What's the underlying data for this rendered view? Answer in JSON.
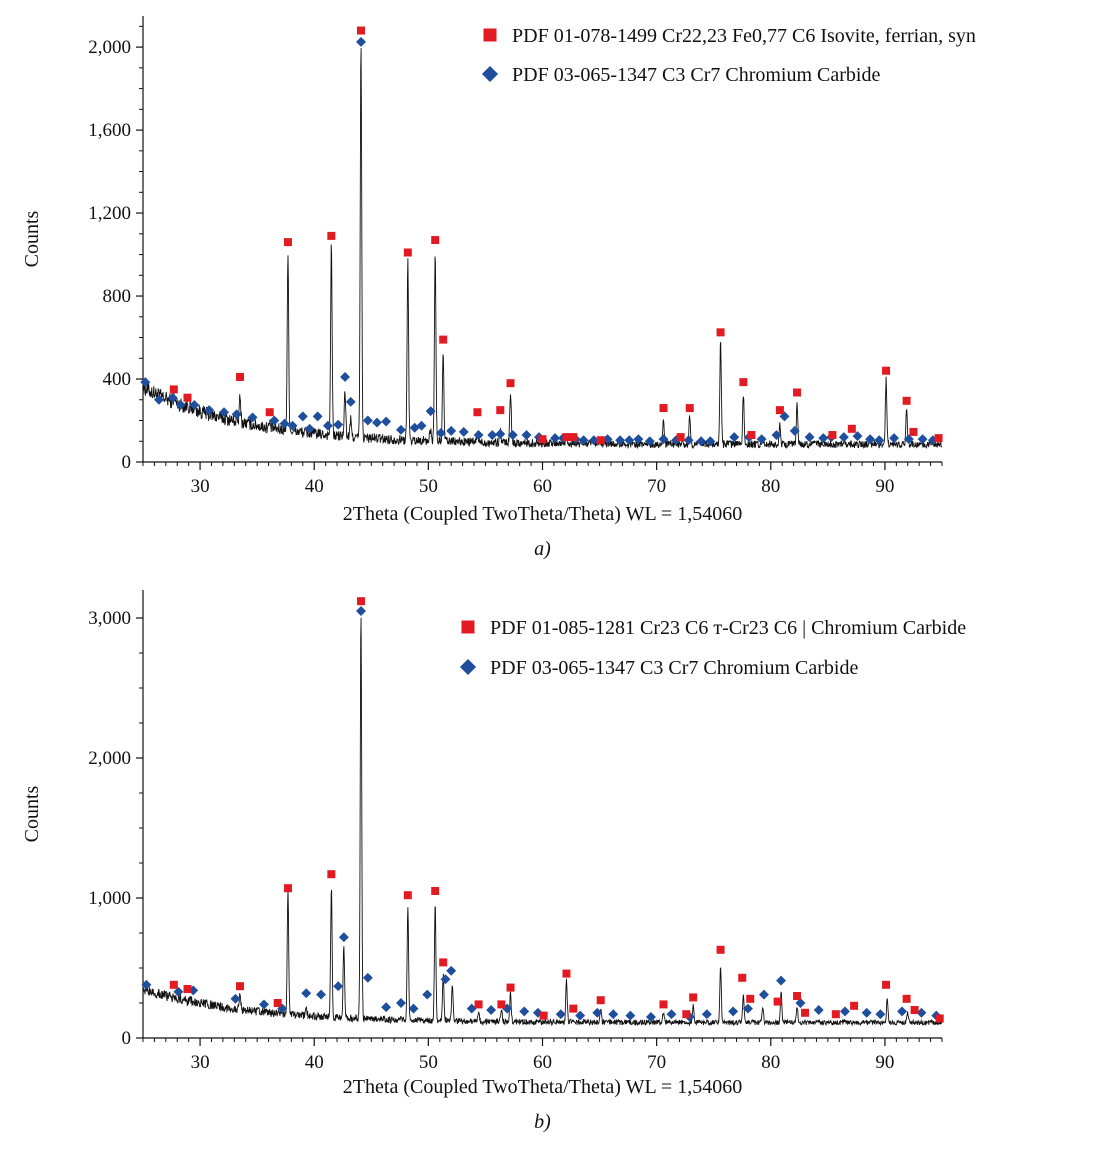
{
  "chart_data": [
    {
      "type": "line",
      "panel_label": "a)",
      "xlabel": "2Theta (Coupled TwoTheta/Theta) WL = 1,54060",
      "ylabel": "Counts",
      "xlim": [
        25,
        95
      ],
      "ylim": [
        0,
        2150
      ],
      "xticks": [
        30,
        40,
        50,
        60,
        70,
        80,
        90
      ],
      "yticks": [
        0,
        400,
        800,
        1200,
        1600,
        2000
      ],
      "ytick_labels": [
        "0",
        "400",
        "800",
        "1,200",
        "1,600",
        "2,000"
      ],
      "grid": false,
      "legend_position": "top-right",
      "baseline": {
        "start": 360,
        "end": 85,
        "decay": 9
      },
      "peaks": [
        [
          27.7,
          20
        ],
        [
          28.9,
          25
        ],
        [
          29.5,
          20
        ],
        [
          33.5,
          120
        ],
        [
          36.1,
          20
        ],
        [
          37.7,
          850
        ],
        [
          41.5,
          920
        ],
        [
          42.7,
          220
        ],
        [
          43.2,
          80
        ],
        [
          44.1,
          1900
        ],
        [
          48.2,
          860
        ],
        [
          50.2,
          60
        ],
        [
          50.6,
          920
        ],
        [
          51.3,
          410
        ],
        [
          54.3,
          40
        ],
        [
          56.3,
          60
        ],
        [
          57.2,
          250
        ],
        [
          62.1,
          30
        ],
        [
          70.6,
          120
        ],
        [
          72.9,
          130
        ],
        [
          75.6,
          500
        ],
        [
          77.6,
          240
        ],
        [
          80.8,
          100
        ],
        [
          82.3,
          200
        ],
        [
          90.1,
          320
        ],
        [
          91.9,
          160
        ]
      ],
      "series": [
        {
          "name": "PDF 01-078-1499 Cr22,23 Fe0,77 C6 Isovite, ferrian, syn",
          "marker": "square",
          "color": "#e21b22",
          "x": [
            27.7,
            28.9,
            33.5,
            36.1,
            37.7,
            41.5,
            44.1,
            48.2,
            50.6,
            51.3,
            54.3,
            56.3,
            57.2,
            60.0,
            62.1,
            62.7,
            65.1,
            70.6,
            72.1,
            72.9,
            75.6,
            77.6,
            78.3,
            80.8,
            82.3,
            85.4,
            87.1,
            90.1,
            91.9,
            92.5,
            94.7
          ],
          "y": [
            350,
            310,
            410,
            240,
            1060,
            1090,
            2080,
            1010,
            1070,
            590,
            240,
            250,
            380,
            110,
            120,
            120,
            105,
            260,
            120,
            260,
            625,
            385,
            130,
            250,
            335,
            130,
            160,
            440,
            295,
            145,
            115
          ]
        },
        {
          "name": "PDF 03-065-1347 C3 Cr7 Chromium Carbide",
          "marker": "diamond",
          "color": "#1f4e9c",
          "x": [
            25.2,
            26.4,
            27.6,
            28.3,
            29.5,
            30.8,
            32.1,
            33.2,
            34.6,
            36.5,
            37.4,
            38.1,
            39.0,
            39.6,
            40.3,
            41.2,
            42.1,
            42.7,
            43.2,
            44.1,
            44.7,
            45.5,
            46.3,
            47.6,
            48.8,
            49.4,
            50.2,
            51.1,
            52.0,
            53.1,
            54.4,
            55.6,
            56.3,
            57.4,
            58.6,
            59.7,
            61.1,
            61.8,
            62.9,
            63.6,
            64.5,
            65.7,
            66.8,
            67.6,
            68.4,
            69.4,
            70.6,
            71.7,
            72.8,
            73.9,
            74.7,
            76.8,
            78.1,
            79.2,
            80.5,
            81.2,
            82.1,
            83.4,
            84.6,
            85.3,
            86.4,
            87.6,
            88.7,
            89.5,
            90.8,
            92.1,
            93.3,
            94.2
          ],
          "y": [
            385,
            300,
            310,
            275,
            275,
            250,
            240,
            230,
            215,
            200,
            185,
            175,
            220,
            160,
            220,
            175,
            180,
            410,
            290,
            2025,
            200,
            190,
            195,
            155,
            165,
            175,
            245,
            140,
            150,
            145,
            130,
            130,
            135,
            130,
            130,
            120,
            115,
            115,
            110,
            105,
            105,
            110,
            105,
            105,
            110,
            100,
            110,
            105,
            105,
            100,
            100,
            120,
            120,
            110,
            130,
            220,
            150,
            120,
            115,
            120,
            120,
            125,
            110,
            105,
            115,
            110,
            110,
            105
          ]
        }
      ]
    },
    {
      "type": "line",
      "panel_label": "b)",
      "xlabel": "2Theta (Coupled TwoTheta/Theta) WL = 1,54060",
      "ylabel": "Counts",
      "xlim": [
        25,
        95
      ],
      "ylim": [
        0,
        3200
      ],
      "xticks": [
        30,
        40,
        50,
        60,
        70,
        80,
        90
      ],
      "yticks": [
        0,
        1000,
        2000,
        3000
      ],
      "ytick_labels": [
        "0",
        "1,000",
        "2,000",
        "3,000"
      ],
      "grid": false,
      "legend_position": "top-right",
      "baseline": {
        "start": 350,
        "end": 110,
        "decay": 9
      },
      "peaks": [
        [
          33.5,
          100
        ],
        [
          37.7,
          870
        ],
        [
          39.3,
          60
        ],
        [
          41.5,
          930
        ],
        [
          42.6,
          520
        ],
        [
          44.1,
          2900
        ],
        [
          48.2,
          800
        ],
        [
          50.6,
          830
        ],
        [
          51.3,
          330
        ],
        [
          52.1,
          270
        ],
        [
          54.4,
          60
        ],
        [
          56.4,
          80
        ],
        [
          57.2,
          200
        ],
        [
          62.1,
          300
        ],
        [
          65.1,
          100
        ],
        [
          70.6,
          70
        ],
        [
          73.2,
          120
        ],
        [
          75.6,
          400
        ],
        [
          77.6,
          200
        ],
        [
          79.3,
          110
        ],
        [
          80.9,
          220
        ],
        [
          82.3,
          120
        ],
        [
          90.2,
          180
        ],
        [
          92.0,
          70
        ]
      ],
      "series": [
        {
          "name": "PDF 01-085-1281 Cr23 C6 т-Cr23 C6 | Chromium Carbide",
          "marker": "square",
          "color": "#e21b22",
          "x": [
            27.7,
            28.9,
            33.5,
            36.8,
            37.7,
            41.5,
            44.1,
            48.2,
            50.6,
            51.3,
            54.4,
            56.4,
            57.2,
            60.1,
            62.1,
            62.7,
            65.1,
            70.6,
            72.6,
            73.2,
            75.6,
            77.5,
            78.2,
            80.6,
            82.3,
            83.0,
            85.7,
            87.3,
            90.1,
            91.9,
            92.6,
            94.8
          ],
          "y": [
            380,
            350,
            370,
            250,
            1070,
            1170,
            3120,
            1020,
            1050,
            540,
            240,
            240,
            360,
            160,
            460,
            210,
            270,
            240,
            170,
            290,
            630,
            430,
            280,
            260,
            300,
            180,
            170,
            230,
            380,
            280,
            200,
            140
          ]
        },
        {
          "name": "PDF 03-065-1347 C3 Cr7 Chromium Carbide",
          "marker": "diamond",
          "color": "#1f4e9c",
          "x": [
            25.3,
            28.1,
            29.4,
            33.1,
            35.6,
            37.2,
            39.3,
            40.6,
            42.1,
            42.6,
            44.1,
            44.7,
            46.3,
            47.6,
            48.7,
            49.9,
            51.5,
            52.0,
            53.8,
            55.5,
            56.9,
            58.4,
            59.6,
            61.6,
            63.3,
            64.8,
            66.2,
            67.7,
            69.5,
            71.3,
            72.9,
            74.4,
            76.7,
            78.0,
            79.4,
            80.9,
            82.6,
            84.2,
            86.5,
            88.4,
            89.6,
            91.5,
            93.2,
            94.5
          ],
          "y": [
            380,
            330,
            340,
            280,
            240,
            210,
            320,
            310,
            370,
            720,
            3050,
            430,
            220,
            250,
            210,
            310,
            420,
            480,
            210,
            200,
            210,
            190,
            180,
            170,
            160,
            180,
            170,
            160,
            150,
            170,
            150,
            170,
            190,
            210,
            310,
            410,
            250,
            200,
            190,
            180,
            170,
            190,
            180,
            160
          ]
        }
      ]
    }
  ]
}
